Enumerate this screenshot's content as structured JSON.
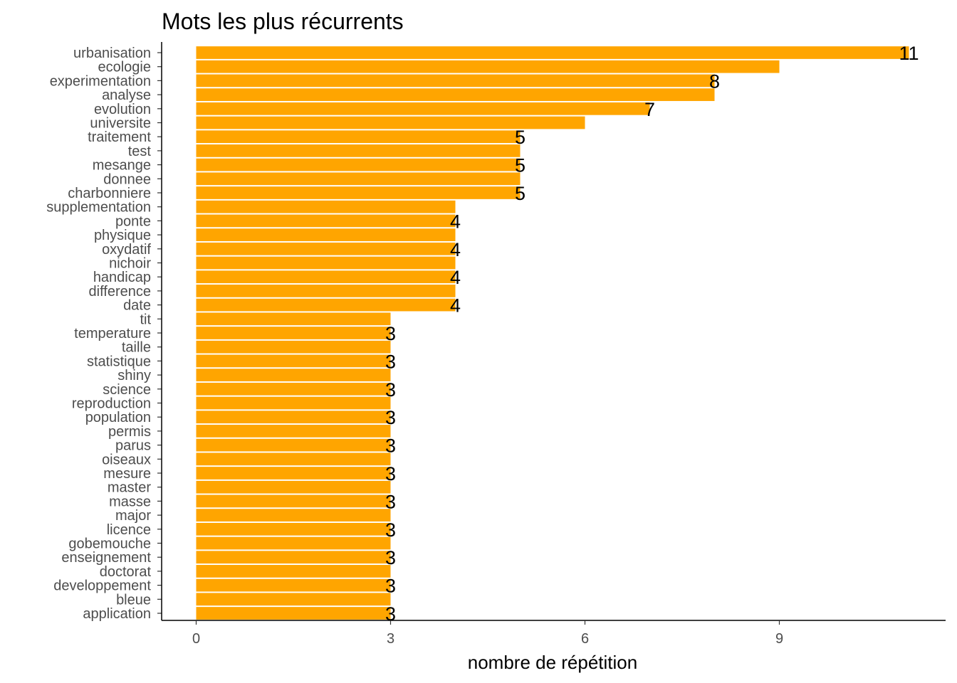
{
  "chart_data": {
    "type": "bar",
    "orientation": "horizontal",
    "title": "Mots les plus récurrents",
    "xlabel": "nombre de répétition",
    "ylabel": "",
    "xlim": [
      0,
      11.5
    ],
    "x_ticks": [
      0,
      3,
      6,
      9
    ],
    "categories": [
      "urbanisation",
      "ecologie",
      "experimentation",
      "analyse",
      "evolution",
      "universite",
      "traitement",
      "test",
      "mesange",
      "donnee",
      "charbonniere",
      "supplementation",
      "ponte",
      "physique",
      "oxydatif",
      "nichoir",
      "handicap",
      "difference",
      "date",
      "tit",
      "temperature",
      "taille",
      "statistique",
      "shiny",
      "science",
      "reproduction",
      "population",
      "permis",
      "parus",
      "oiseaux",
      "mesure",
      "master",
      "masse",
      "major",
      "licence",
      "gobemouche",
      "enseignement",
      "doctorat",
      "developpement",
      "bleue",
      "application"
    ],
    "values": [
      11,
      9,
      8,
      8,
      7,
      6,
      5,
      5,
      5,
      5,
      5,
      4,
      4,
      4,
      4,
      4,
      4,
      4,
      4,
      3,
      3,
      3,
      3,
      3,
      3,
      3,
      3,
      3,
      3,
      3,
      3,
      3,
      3,
      3,
      3,
      3,
      3,
      3,
      3,
      3,
      3
    ],
    "data_labels": [
      "11",
      "9",
      "8",
      "8",
      "7",
      "6",
      "5",
      "5",
      "5",
      "5",
      "5",
      "4",
      "4",
      "4",
      "4",
      "4",
      "4",
      "4",
      "4",
      "3",
      "3",
      "3",
      "3",
      "3",
      "3",
      "3",
      "3",
      "3",
      "3",
      "3",
      "3",
      "3",
      "3",
      "3",
      "3",
      "3",
      "3",
      "3",
      "3",
      "3",
      "3"
    ],
    "bar_color": "#FFA500",
    "grid": false,
    "legend": "none"
  }
}
